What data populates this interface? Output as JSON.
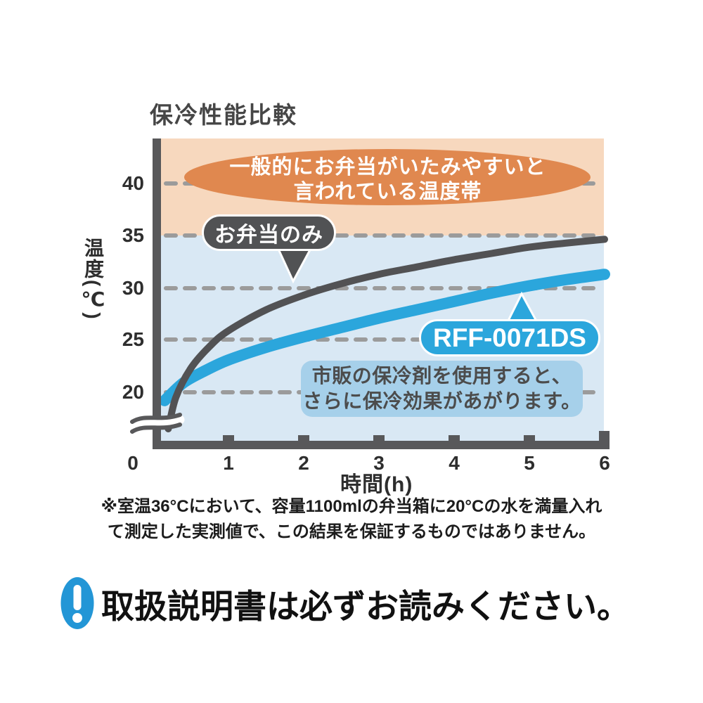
{
  "chart": {
    "title": "保冷性能比較",
    "y_axis": {
      "label": "温度(℃)",
      "ticks": [
        "40",
        "35",
        "30",
        "25",
        "20"
      ]
    },
    "x_axis": {
      "label": "時間(h)",
      "ticks": [
        "0",
        "1",
        "2",
        "3",
        "4",
        "5",
        "6"
      ]
    },
    "danger_zone": {
      "line1": "一般的にお弁当がいたみやすいと",
      "line2": "言われている温度帯"
    },
    "bento_label": "お弁当のみ",
    "product_label": "RFF-0071DS",
    "callout": {
      "line1": "市販の保冷剤を使用すると、",
      "line2": "さらに保冷効果があがります。"
    }
  },
  "chart_data": {
    "type": "line",
    "title": "保冷性能比較",
    "xlabel": "時間(h)",
    "ylabel": "温度(℃)",
    "xlim": [
      0,
      6
    ],
    "x_ticks": [
      0,
      1,
      2,
      3,
      4,
      5,
      6
    ],
    "y_ticks": [
      20,
      25,
      30,
      35,
      40
    ],
    "ylim_shown": [
      20,
      43
    ],
    "axis_break_below_y": 20,
    "grid": {
      "horizontal_dashed": true,
      "color": "#9b9b9b"
    },
    "danger_band": {
      "y_from": 35,
      "y_to": 43,
      "fill": "#f7d8be",
      "label": "一般的にお弁当がいたみやすいと言われている温度帯"
    },
    "plot_background": "#d9e8f4",
    "series": [
      {
        "name": "お弁当のみ",
        "color": "#525254",
        "stroke_width": 10,
        "points": [
          [
            0.2,
            16.5
          ],
          [
            0.3,
            19.5
          ],
          [
            0.5,
            22.3
          ],
          [
            0.75,
            24.4
          ],
          [
            1,
            25.9
          ],
          [
            1.5,
            27.9
          ],
          [
            2,
            29.3
          ],
          [
            2.5,
            30.4
          ],
          [
            3,
            31.3
          ],
          [
            3.5,
            32.0
          ],
          [
            4,
            32.7
          ],
          [
            4.5,
            33.3
          ],
          [
            5,
            33.9
          ],
          [
            5.5,
            34.3
          ],
          [
            6,
            34.65
          ]
        ]
      },
      {
        "name": "RFF-0071DS",
        "color": "#2ba6dc",
        "stroke_width": 16,
        "points": [
          [
            0.15,
            19.2
          ],
          [
            0.4,
            20.9
          ],
          [
            0.7,
            22.1
          ],
          [
            1,
            23.1
          ],
          [
            1.5,
            24.3
          ],
          [
            2,
            25.3
          ],
          [
            2.5,
            26.2
          ],
          [
            3,
            27.1
          ],
          [
            3.5,
            27.9
          ],
          [
            4,
            28.7
          ],
          [
            4.5,
            29.5
          ],
          [
            5,
            30.2
          ],
          [
            5.5,
            30.8
          ],
          [
            6,
            31.3
          ]
        ]
      }
    ]
  },
  "footnote": {
    "line1": "※室温36°Cにおいて、容量1100mlの弁当箱に20°Cの水を満量入れ",
    "line2": "て測定した実測値で、この結果を保証するものではありません。"
  },
  "notice": {
    "text": "取扱説明書は必ずお読みください。",
    "icon": "exclamation-icon",
    "icon_color": "#2396d6"
  },
  "colors": {
    "danger_band": "#f7d8be",
    "danger_ellipse": "#e0884f",
    "plot_background": "#d9e8f4",
    "product_blue": "#2ba6dc",
    "dark_gray": "#525254",
    "axis": "#58585a",
    "grid": "#9b9b9b",
    "callout_background": "#a6d0ea",
    "notice_blue": "#2396d6"
  }
}
